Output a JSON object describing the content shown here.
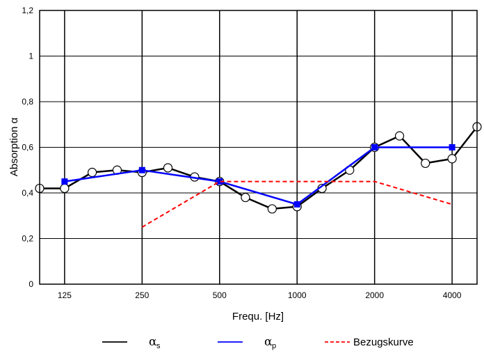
{
  "chart_data": {
    "type": "line",
    "xlabel": "Frequ. [Hz]",
    "ylabel": "Absorption α",
    "x_scale": "log2",
    "xlim": [
      100,
      5000
    ],
    "ylim": [
      0,
      1.2
    ],
    "x_ticks": [
      125,
      250,
      500,
      1000,
      2000,
      4000
    ],
    "x_tick_labels": [
      "125",
      "250",
      "500",
      "1000",
      "2000",
      "4000"
    ],
    "y_ticks": [
      0,
      0.2,
      0.4,
      0.6,
      0.8,
      1.0,
      1.2
    ],
    "y_tick_labels": [
      "0",
      "0,2",
      "0,4",
      "0,6",
      "0,8",
      "1",
      "1,2"
    ],
    "grid": true,
    "legend_position": "bottom",
    "series": [
      {
        "name": "αs",
        "legend_symbol": "α",
        "legend_subscript": "s",
        "color": "#000000",
        "line_style": "solid",
        "marker": "open-circle",
        "x": [
          100,
          125,
          160,
          200,
          250,
          315,
          400,
          500,
          630,
          800,
          1000,
          1250,
          1600,
          2000,
          2500,
          3150,
          4000,
          5000
        ],
        "y": [
          0.42,
          0.42,
          0.49,
          0.5,
          0.49,
          0.51,
          0.47,
          0.45,
          0.38,
          0.33,
          0.34,
          0.42,
          0.5,
          0.6,
          0.65,
          0.53,
          0.55,
          0.69
        ]
      },
      {
        "name": "αp",
        "legend_symbol": "α",
        "legend_subscript": "p",
        "color": "#0000ff",
        "line_style": "solid",
        "marker": "filled-square",
        "x": [
          125,
          250,
          500,
          1000,
          2000,
          4000
        ],
        "y": [
          0.45,
          0.5,
          0.45,
          0.35,
          0.6,
          0.6
        ]
      },
      {
        "name": "Bezugskurve",
        "color": "#ff0000",
        "line_style": "dashed",
        "marker": "none",
        "x": [
          250,
          500,
          2000,
          4000
        ],
        "y": [
          0.25,
          0.45,
          0.45,
          0.35
        ]
      }
    ]
  }
}
